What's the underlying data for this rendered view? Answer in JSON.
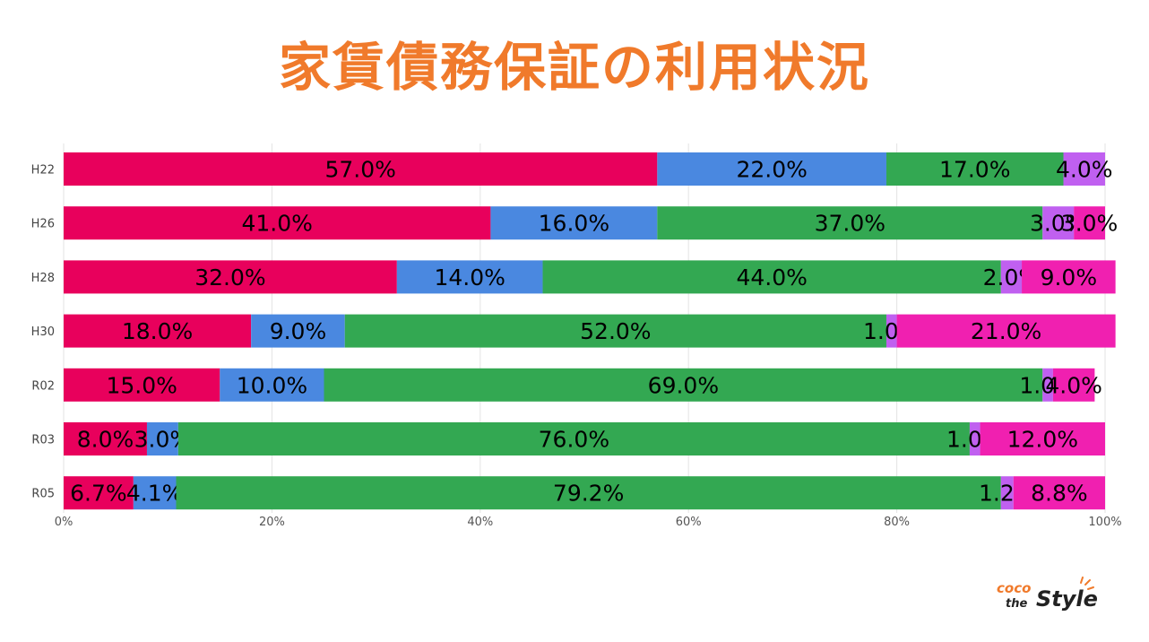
{
  "title": "家賃債務保証の利用状況",
  "title_color": "#f07a2b",
  "logo": {
    "text_top": "coco",
    "text_mid": "the",
    "text_main": "Style"
  },
  "chart_data": {
    "type": "bar",
    "orientation": "horizontal",
    "stacked": true,
    "title": "家賃債務保証の利用状況",
    "xlabel": "",
    "ylabel": "",
    "xlim": [
      0,
      100
    ],
    "x_ticks": [
      "0%",
      "20%",
      "40%",
      "60%",
      "80%",
      "100%"
    ],
    "grid": true,
    "legend": "none",
    "categories": [
      "H22",
      "H26",
      "H28",
      "H30",
      "R02",
      "R03",
      "R05"
    ],
    "series": [
      {
        "color": "#e8005c",
        "values": [
          57.0,
          41.0,
          32.0,
          18.0,
          15.0,
          8.0,
          6.7
        ],
        "labels": [
          "57.0%",
          "41.0%",
          "32.0%",
          "18.0%",
          "15.0%",
          "8.0%",
          "6.7%"
        ]
      },
      {
        "color": "#4a88e0",
        "values": [
          22.0,
          16.0,
          14.0,
          9.0,
          10.0,
          3.0,
          4.1
        ],
        "labels": [
          "22.0%",
          "16.0%",
          "14.0%",
          "9.0%",
          "10.0%",
          "3.0%",
          "4.1%"
        ]
      },
      {
        "color": "#33a852",
        "values": [
          17.0,
          37.0,
          44.0,
          52.0,
          69.0,
          76.0,
          79.2
        ],
        "labels": [
          "17.0%",
          "37.0%",
          "44.0%",
          "52.0%",
          "69.0%",
          "76.0%",
          "79.2%"
        ]
      },
      {
        "color": "#c060f0",
        "values": [
          4.0,
          3.0,
          2.0,
          1.0,
          1.0,
          1.0,
          1.2
        ],
        "labels": [
          "4.0%",
          "3.0%",
          "2.0%",
          "1.0%",
          "1.0%",
          "1.0%",
          "1.2%"
        ]
      },
      {
        "color": "#f020b0",
        "values": [
          0,
          3.0,
          9.0,
          21.0,
          4.0,
          12.0,
          8.8
        ],
        "labels": [
          "",
          "3.0%",
          "9.0%",
          "21.0%",
          "4.0%",
          "12.0%",
          "8.8%"
        ]
      }
    ]
  }
}
